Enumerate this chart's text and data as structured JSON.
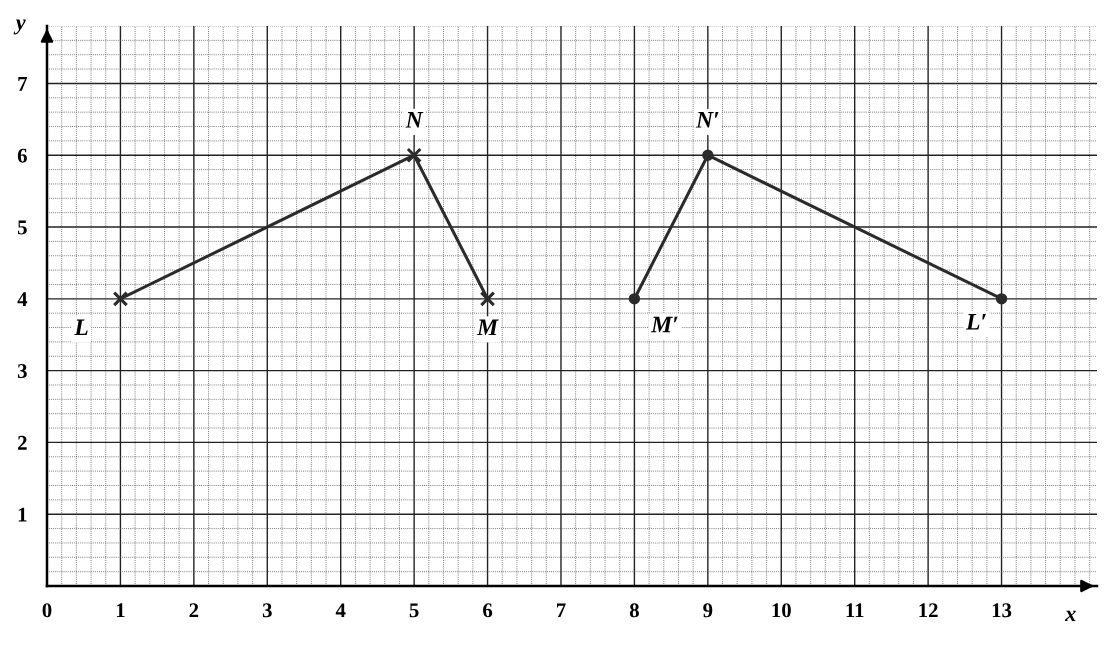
{
  "chart_data": {
    "type": "line",
    "xlabel": "x",
    "ylabel": "y",
    "xlim": [
      0,
      14.3
    ],
    "ylim": [
      0,
      7.8
    ],
    "xticks": [
      0,
      1,
      2,
      3,
      4,
      5,
      6,
      7,
      8,
      9,
      10,
      11,
      12,
      13
    ],
    "yticks": [
      1,
      2,
      3,
      4,
      5,
      6,
      7
    ],
    "grid": true,
    "series": [
      {
        "x": [
          1,
          5,
          6
        ],
        "values": [
          4,
          6,
          4
        ],
        "color": "#2b2b2b",
        "marker": "cross"
      },
      {
        "x": [
          8,
          9,
          13
        ],
        "values": [
          4,
          6,
          4
        ],
        "color": "#2b2b2b",
        "marker": "circle"
      }
    ],
    "annotations": [
      {
        "text": "L",
        "x": 1,
        "y": 4
      },
      {
        "text": "N",
        "x": 5,
        "y": 6
      },
      {
        "text": "M",
        "x": 6,
        "y": 4
      },
      {
        "text": "M′",
        "x": 8,
        "y": 4
      },
      {
        "text": "N′",
        "x": 9,
        "y": 6
      },
      {
        "text": "L′",
        "x": 13,
        "y": 4
      }
    ]
  }
}
